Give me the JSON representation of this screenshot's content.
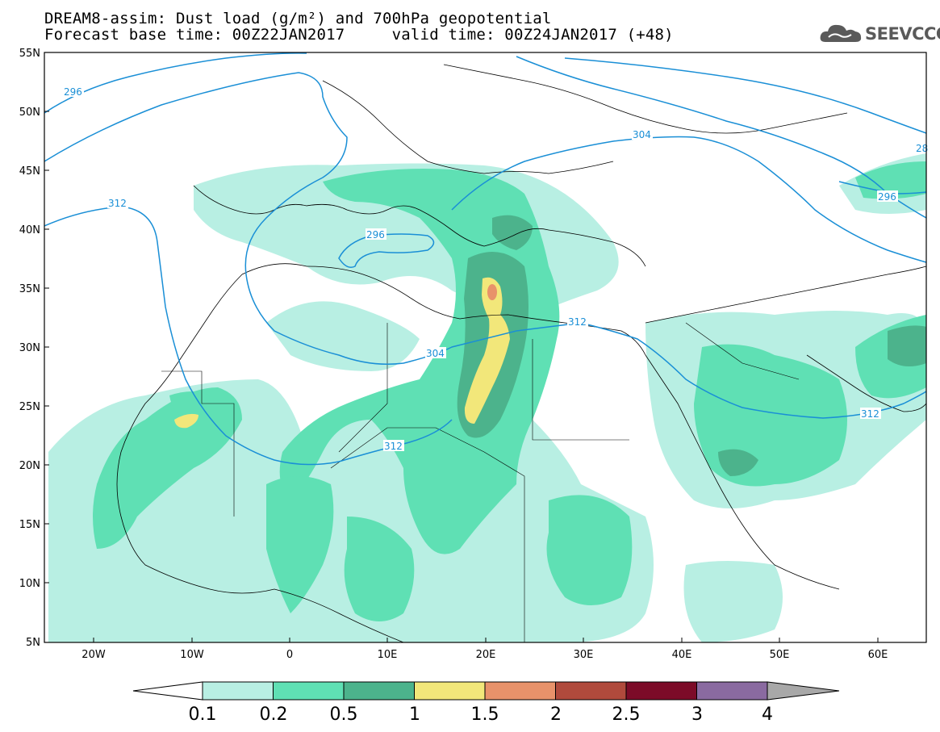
{
  "title_line1": "DREAM8-assim: Dust load (g/m²) and 700hPa geopotential",
  "title_line2": "Forecast base time: 00Z22JAN2017     valid time: 00Z24JAN2017 (+48)",
  "logo_text": "SEEVCCC",
  "logo_icon": "cloud-icon",
  "lat_labels": [
    "55N",
    "50N",
    "45N",
    "40N",
    "35N",
    "30N",
    "25N",
    "20N",
    "15N",
    "10N",
    "5N"
  ],
  "lon_labels": [
    "20W",
    "10W",
    "0",
    "10E",
    "20E",
    "30E",
    "40E",
    "50E",
    "60E"
  ],
  "contour_labels": [
    "296",
    "312",
    "296",
    "304",
    "312",
    "304",
    "312",
    "296",
    "28",
    "312"
  ],
  "colorbar": {
    "labels": [
      "0.1",
      "0.2",
      "0.5",
      "1",
      "1.5",
      "2",
      "2.5",
      "3",
      "4"
    ],
    "colors": [
      "#ffffff",
      "#b8efe3",
      "#5fe0b4",
      "#4cb38c",
      "#f2e77a",
      "#e8926a",
      "#b04a3c",
      "#7c0b28",
      "#8a6aa0",
      "#a8a8a8"
    ]
  },
  "colors": {
    "contour": "#1a8fd6",
    "dust_low": "#b8efe3",
    "dust_mid": "#5fe0b4",
    "dust_high": "#4cb38c",
    "dust_yellow": "#f2e77a",
    "dust_orange": "#e8926a"
  }
}
